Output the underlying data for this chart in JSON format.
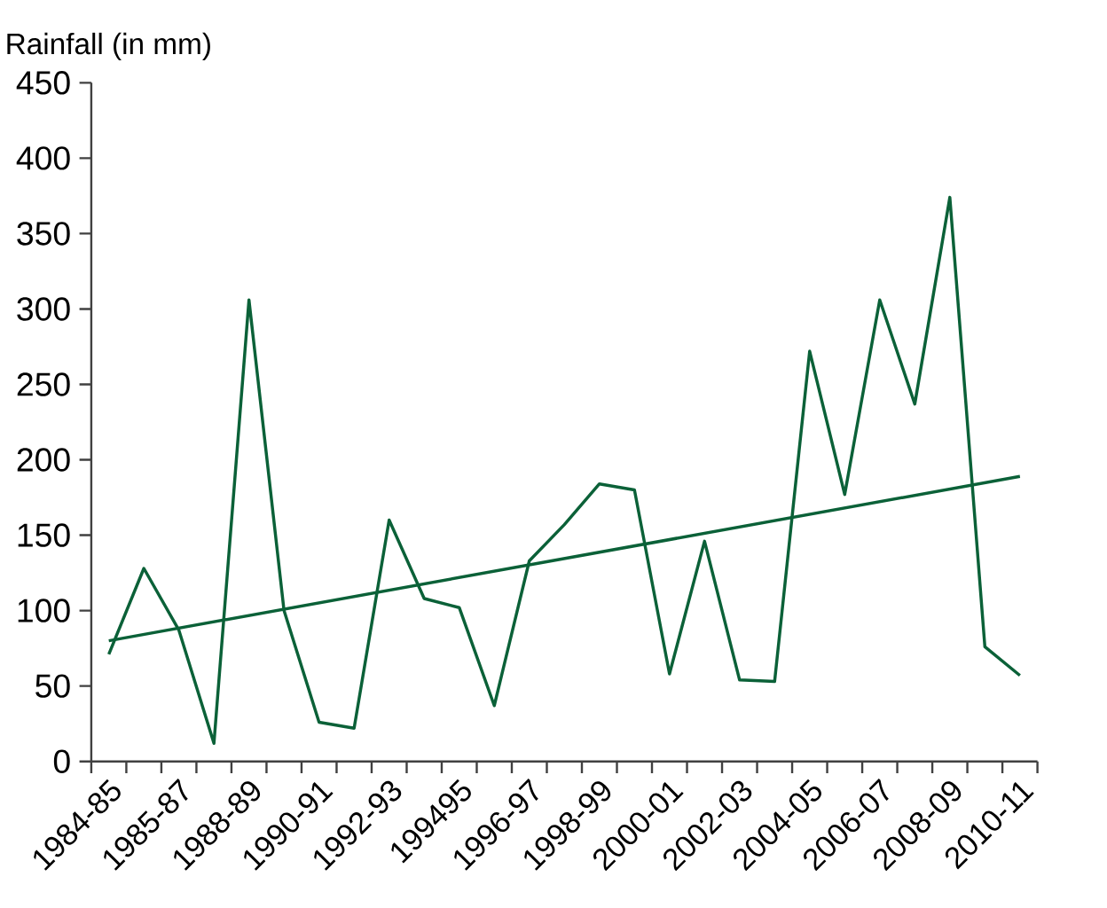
{
  "chart_data": {
    "type": "line",
    "ylabel": "Rainfall (in mm)",
    "categories": [
      "1984-85",
      null,
      "1985-87",
      null,
      "1988-89",
      null,
      "1990-91",
      null,
      "1992-93",
      null,
      "199495",
      null,
      "1996-97",
      null,
      "1998-99",
      null,
      "2000-01",
      null,
      "2002-03",
      null,
      "2004-05",
      null,
      "2006-07",
      null,
      "2008-09",
      null,
      "2010-11"
    ],
    "series": [
      {
        "color": "#0b6138",
        "values": [
          71,
          128,
          87,
          12,
          306,
          100,
          26,
          22,
          160,
          108,
          102,
          37,
          133,
          157,
          184,
          180,
          58,
          146,
          54,
          53,
          272,
          177,
          306,
          237,
          374,
          76,
          57
        ]
      },
      {
        "type": "line",
        "color": "#0b6138",
        "values": [
          80,
          null,
          null,
          null,
          null,
          null,
          null,
          null,
          null,
          null,
          null,
          null,
          null,
          null,
          null,
          null,
          null,
          null,
          null,
          null,
          null,
          null,
          null,
          null,
          null,
          null,
          189
        ]
      }
    ],
    "ylim": [
      0,
      450
    ],
    "yticks": [
      0,
      50,
      100,
      150,
      200,
      250,
      300,
      350,
      400,
      450
    ],
    "grid": false,
    "marker": "none",
    "line_style": "solid"
  }
}
